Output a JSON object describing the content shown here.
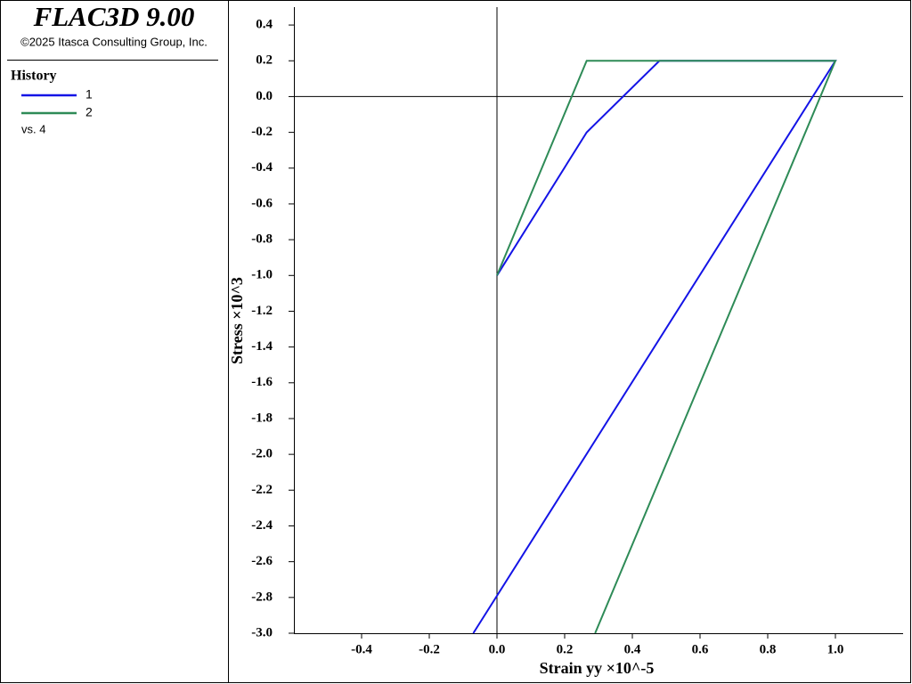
{
  "header": {
    "title": "FLAC3D 9.00",
    "copyright": "©2025 Itasca Consulting Group, Inc."
  },
  "legend": {
    "title": "History",
    "footer": "vs. 4"
  },
  "chart_data": {
    "type": "line",
    "xlabel": "Strain yy ×10^-5",
    "ylabel": "Stress ×10^3",
    "xlim": [
      -0.6,
      1.2
    ],
    "ylim": [
      -3.0,
      0.5
    ],
    "xticks": [
      -0.4,
      -0.2,
      {
        "value": 0,
        "label": "0.0"
      },
      0.2,
      0.4,
      0.6,
      0.8,
      {
        "value": 1,
        "label": "1.0"
      }
    ],
    "yticks": [
      {
        "value": -3,
        "label": "-3.0"
      },
      -2.8,
      -2.6,
      -2.4,
      -2.2,
      {
        "value": -2,
        "label": "-2.0"
      },
      -1.8,
      -1.6,
      -1.4,
      -1.2,
      {
        "value": -1,
        "label": "-1.0"
      },
      -0.8,
      -0.6,
      -0.4,
      -0.2,
      {
        "value": 0,
        "label": "0.0"
      },
      0.2,
      0.4
    ],
    "series": [
      {
        "name": "1",
        "color": "#1414e6",
        "x": [
          0,
          0.265,
          0.48,
          1.0,
          -0.07
        ],
        "values": [
          -1.0,
          -0.2,
          0.2,
          0.2,
          -3.0
        ]
      },
      {
        "name": "2",
        "color": "#2e8b57",
        "x": [
          0,
          0.265,
          1.0,
          0.29
        ],
        "values": [
          -1.0,
          0.2,
          0.2,
          -3.0
        ]
      }
    ]
  }
}
